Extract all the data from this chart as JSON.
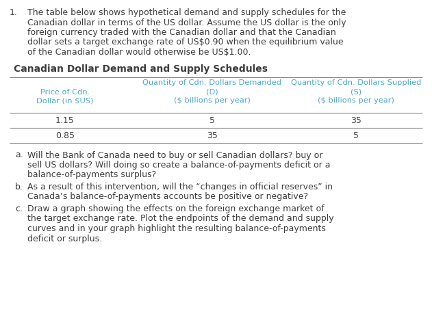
{
  "title_number": "1.",
  "main_text_lines": [
    "The table below shows hypothetical demand and supply schedules for the",
    "Canadian dollar in terms of the US dollar. Assume the US dollar is the only",
    "foreign currency traded with the Canadian dollar and that the Canadian",
    "dollar sets a target exchange rate of US$0.90 when the equilibrium value",
    "of the Canadian dollar would otherwise be US$1.00."
  ],
  "table_title": "Canadian Dollar Demand and Supply Schedules",
  "col1_header_line1": "Quantity of Cdn. Dollars Demanded",
  "col1_header_line2": "(D)",
  "col1_header_line3": "($ billions per year)",
  "col2_header_line1": "Quantity of Cdn. Dollars Supplied",
  "col2_header_line2": "(S)",
  "col2_header_line3": "($ billions per year)",
  "row_header_line1": "Price of Cdn.",
  "row_header_line2": "Dollar (in $US)",
  "data_rows": [
    {
      "price": "1.15",
      "demand": "5",
      "supply": "35"
    },
    {
      "price": "0.85",
      "demand": "35",
      "supply": "5"
    }
  ],
  "questions": [
    {
      "label": "a.",
      "text_lines": [
        "Will the Bank of Canada need to buy or sell Canadian dollars? buy or",
        "sell US dollars? Will doing so create a balance-of-payments deficit or a",
        "balance-of-payments surplus?"
      ]
    },
    {
      "label": "b.",
      "text_lines": [
        "As a result of this intervention, will the “changes in official reserves” in",
        "Canada’s balance-of-payments accounts be positive or negative?"
      ]
    },
    {
      "label": "c.",
      "text_lines": [
        "Draw a graph showing the effects on the foreign exchange market of",
        "the target exchange rate. Plot the endpoints of the demand and supply",
        "curves and in your graph highlight the resulting balance-of-payments",
        "deficit or surplus."
      ]
    }
  ],
  "bg_color": "#ffffff",
  "text_color": "#3d3d3d",
  "header_color": "#4aa8c8",
  "table_line_color": "#888888",
  "body_font_size": 9.0,
  "table_header_font_size": 8.2,
  "table_data_font_size": 9.0,
  "question_font_size": 9.0,
  "table_title_font_size": 10.0
}
